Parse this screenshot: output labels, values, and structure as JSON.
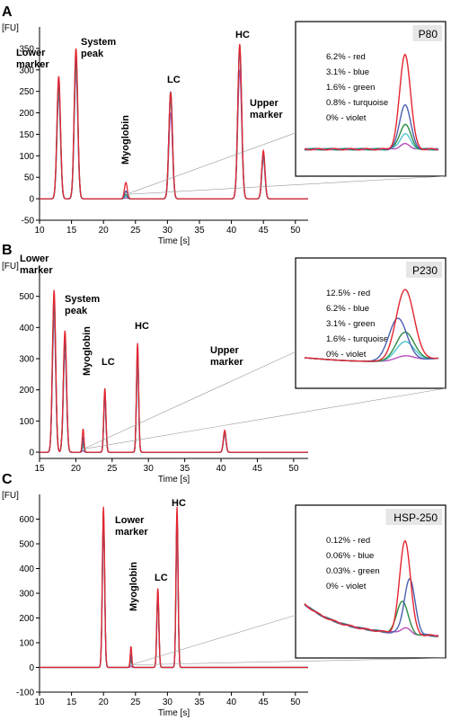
{
  "colors": {
    "red": "#e3262f",
    "blue": "#4a5fb0",
    "green": "#2e8b45",
    "turquoise": "#4fc4cf",
    "violet": "#b64dbb"
  },
  "chart_data": [
    {
      "panel_label": "A",
      "type": "line",
      "ylabel": "[FU]",
      "xlabel": "Time [s]",
      "xlim": [
        10,
        52
      ],
      "ylim": [
        -50,
        400
      ],
      "x_ticks": [
        10,
        15,
        20,
        25,
        30,
        35,
        40,
        45,
        50
      ],
      "y_ticks": [
        -50,
        0,
        50,
        100,
        150,
        200,
        250,
        300,
        350
      ],
      "peaks": [
        {
          "label": "Lower marker",
          "x": 13.0,
          "y": 285
        },
        {
          "label": "System peak",
          "x": 15.7,
          "y": 350
        },
        {
          "label": "Myoglobin",
          "x": 23.5,
          "y": 35
        },
        {
          "label": "LC",
          "x": 30.5,
          "y": 255
        },
        {
          "label": "HC",
          "x": 41.3,
          "y": 360
        },
        {
          "label": "Upper marker",
          "x": 45.0,
          "y": 112
        }
      ],
      "series": [
        {
          "name": "6.2% - red",
          "color": "#e3262f",
          "myoglobin": 38,
          "lc": 248,
          "hc": 360
        },
        {
          "name": "3.1% - blue",
          "color": "#4a5fb0",
          "myoglobin": 18,
          "lc": 250,
          "hc": 355
        },
        {
          "name": "1.6% - green",
          "color": "#2e8b45",
          "myoglobin": 10,
          "lc": 245,
          "hc": 350
        },
        {
          "name": "0.8% - turquoise",
          "color": "#4fc4cf",
          "myoglobin": 6,
          "lc": 230,
          "hc": 345
        },
        {
          "name": "0% - violet",
          "color": "#b64dbb",
          "myoglobin": 2,
          "lc": 200,
          "hc": 300
        }
      ],
      "inset": {
        "title": "P80",
        "legend": [
          "6.2% - red",
          "3.1% - blue",
          "1.6% - green",
          "0.8% - turquoise",
          "0% - violet"
        ],
        "zoom_x": [
          21,
          26
        ]
      }
    },
    {
      "panel_label": "B",
      "type": "line",
      "ylabel": "[FU]",
      "xlabel": "Time [s]",
      "xlim": [
        15,
        52
      ],
      "ylim": [
        -20,
        600
      ],
      "x_ticks": [
        15,
        20,
        25,
        30,
        35,
        40,
        45,
        50
      ],
      "y_ticks": [
        0,
        100,
        200,
        300,
        400,
        500
      ],
      "peaks": [
        {
          "label": "Lower marker",
          "x": 17.0,
          "y": 520
        },
        {
          "label": "System peak",
          "x": 18.5,
          "y": 390
        },
        {
          "label": "Myoglobin",
          "x": 21.0,
          "y": 75
        },
        {
          "label": "LC",
          "x": 24.0,
          "y": 205
        },
        {
          "label": "HC",
          "x": 28.5,
          "y": 350
        },
        {
          "label": "Upper marker",
          "x": 40.5,
          "y": 70
        }
      ],
      "series": [
        {
          "name": "12.5% - red",
          "color": "#e3262f",
          "myoglobin": 75
        },
        {
          "name": "6.2% - blue",
          "color": "#4a5fb0",
          "myoglobin": 45
        },
        {
          "name": "3.1% - green",
          "color": "#2e8b45",
          "myoglobin": 30
        },
        {
          "name": "1.6% - turquoise",
          "color": "#4fc4cf",
          "myoglobin": 20
        },
        {
          "name": "0% - violet",
          "color": "#b64dbb",
          "myoglobin": 5
        }
      ],
      "inset": {
        "title": "P230",
        "legend": [
          "12.5% - red",
          "6.2% - blue",
          "3.1% - green",
          "1.6% - turquoise",
          "0% - violet"
        ],
        "zoom_x": [
          19.5,
          22.5
        ]
      }
    },
    {
      "panel_label": "C",
      "type": "line",
      "ylabel": "[FU]",
      "xlabel": "Time [s]",
      "xlim": [
        10,
        52
      ],
      "ylim": [
        -100,
        700
      ],
      "x_ticks": [
        10,
        15,
        20,
        25,
        30,
        35,
        40,
        45,
        50
      ],
      "y_ticks": [
        -100,
        0,
        100,
        200,
        300,
        400,
        500,
        600
      ],
      "peaks": [
        {
          "label": "Lower marker",
          "x": 20.0,
          "y": 650
        },
        {
          "label": "Myoglobin",
          "x": 24.3,
          "y": 85
        },
        {
          "label": "LC",
          "x": 28.5,
          "y": 320
        },
        {
          "label": "HC",
          "x": 31.5,
          "y": 650
        }
      ],
      "series": [
        {
          "name": "0.12% - red",
          "color": "#e3262f",
          "myoglobin": 85
        },
        {
          "name": "0.06% - blue",
          "color": "#4a5fb0",
          "myoglobin": 50
        },
        {
          "name": "0.03% - green",
          "color": "#2e8b45",
          "myoglobin": 30
        },
        {
          "name": "0% - violet",
          "color": "#b64dbb",
          "myoglobin": 5
        }
      ],
      "inset": {
        "title": "HSP-250",
        "legend": [
          "0.12% - red",
          "0.06% - blue",
          "0.03% - green",
          "0% - violet"
        ],
        "zoom_x": [
          22.5,
          26
        ]
      }
    }
  ]
}
